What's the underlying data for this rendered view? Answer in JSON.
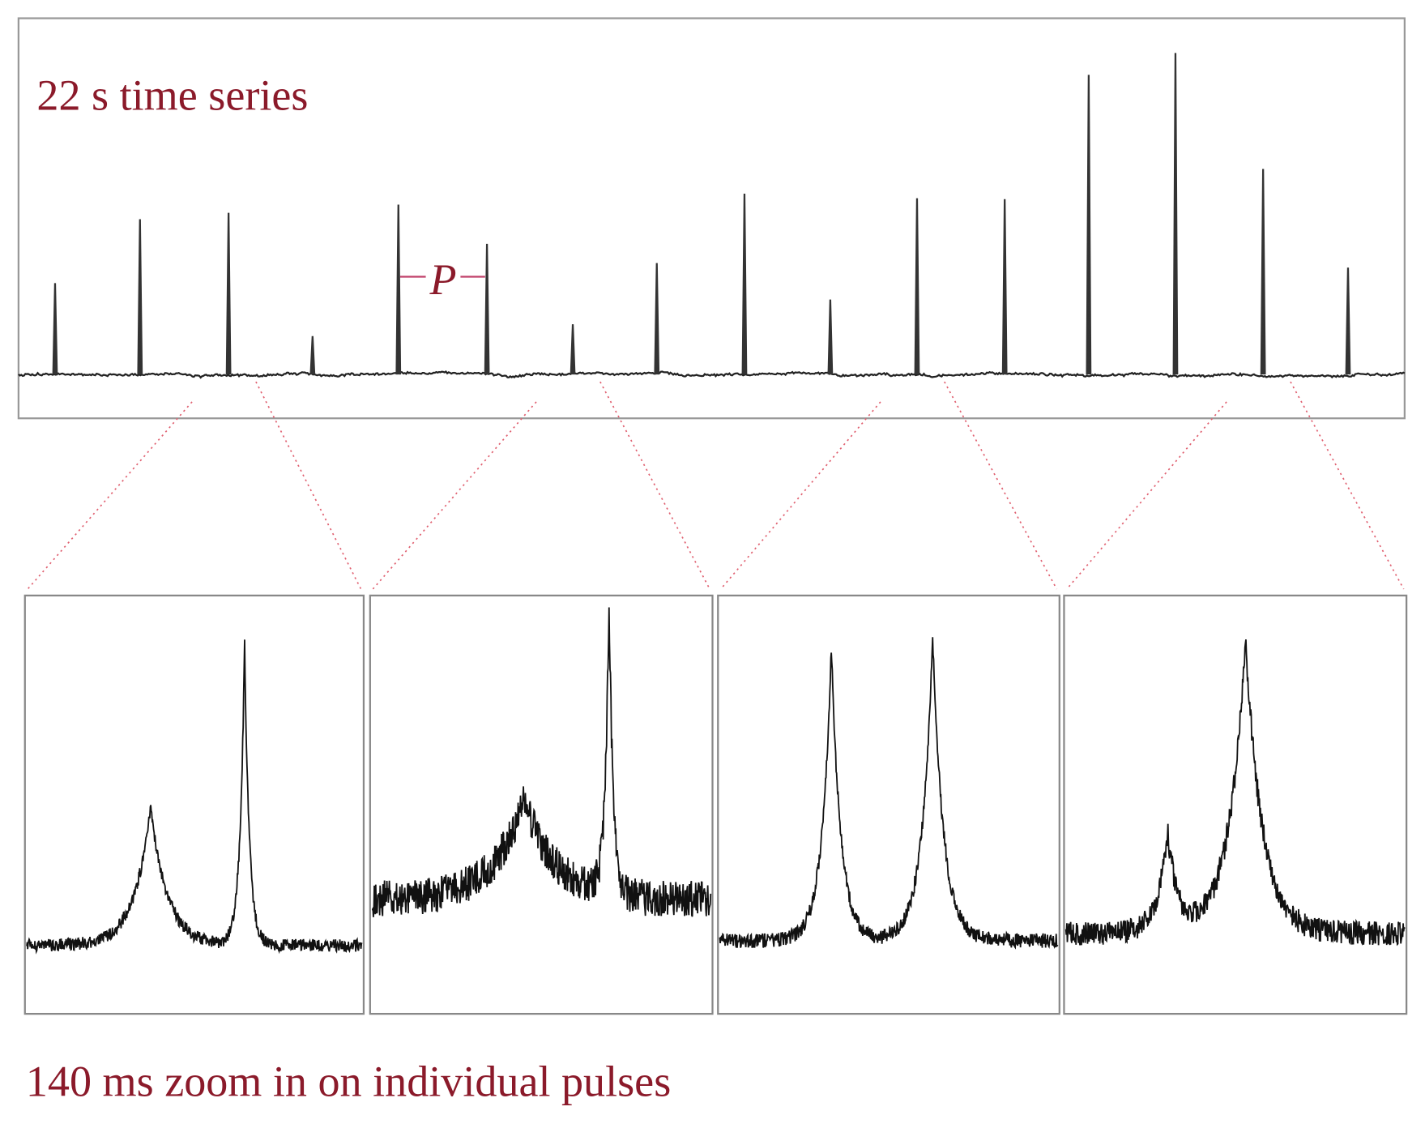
{
  "top_panel": {
    "title": "22 s time series",
    "period_label": "P"
  },
  "bottom_panel": {
    "caption": "140 ms zoom in on individual pulses"
  }
}
